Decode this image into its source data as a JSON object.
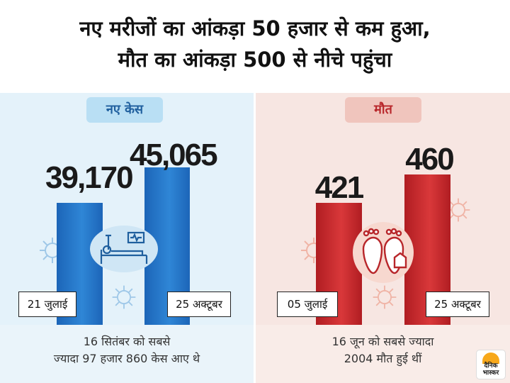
{
  "header": {
    "line1": "नए मरीजों का आंकड़ा 50 हजार से कम हुआ,",
    "line2": "मौत का आंकड़ा 500 से नीचे पहुंचा"
  },
  "chart_data": [
    {
      "type": "bar",
      "title": "नए केस",
      "categories": [
        "21 जुलाई",
        "25 अक्टूबर"
      ],
      "values": [
        39170,
        45065
      ],
      "value_labels": [
        "39,170",
        "45,065"
      ],
      "color": "#1f72c6",
      "note_line1": "16 सितंबर को सबसे",
      "note_line2": "ज्यादा 97 हजार 860 केस आए थे"
    },
    {
      "type": "bar",
      "title": "मौत",
      "categories": [
        "05 जुलाई",
        "25 अक्टूबर"
      ],
      "values": [
        421,
        460
      ],
      "value_labels": [
        "421",
        "460"
      ],
      "color": "#c9282c",
      "note_line1": "16 जून को सबसे ज्यादा",
      "note_line2": "2004 मौत हुई थीं"
    }
  ],
  "logo": {
    "text_line1": "दैनिक",
    "text_line2": "भास्कर",
    "icon": "sun-logo-icon"
  },
  "icons": [
    "hospital-bed-icon",
    "footprints-icon",
    "virus-icon"
  ]
}
